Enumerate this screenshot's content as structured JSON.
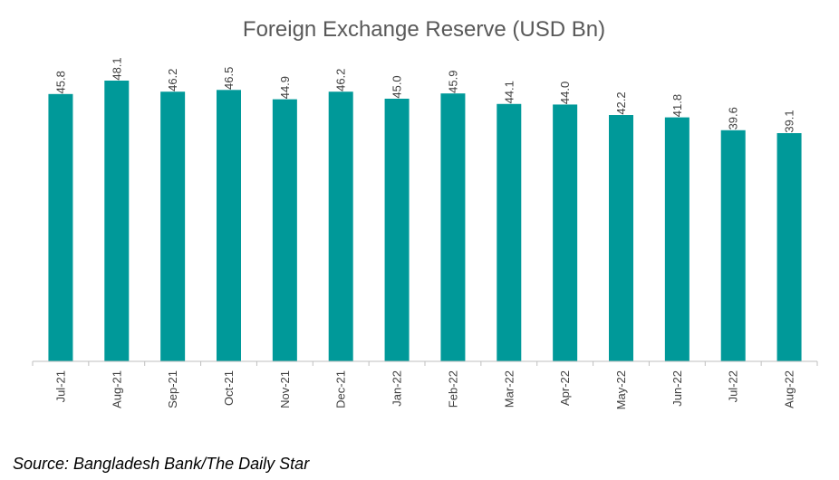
{
  "chart_data": {
    "type": "bar",
    "title": "Foreign Exchange Reserve (USD Bn)",
    "categories": [
      "Jul-21",
      "Aug-21",
      "Sep-21",
      "Oct-21",
      "Nov-21",
      "Dec-21",
      "Jan-22",
      "Feb-22",
      "Mar-22",
      "Apr-22",
      "May-22",
      "Jun-22",
      "Jul-22",
      "Aug-22"
    ],
    "values": [
      45.8,
      48.1,
      46.2,
      46.5,
      44.9,
      46.2,
      45.0,
      45.9,
      44.1,
      44.0,
      42.2,
      41.8,
      39.6,
      39.1
    ],
    "value_labels": [
      "45.8",
      "48.1",
      "46.2",
      "46.5",
      "44.9",
      "46.2",
      "45.0",
      "45.9",
      "44.1",
      "44.0",
      "42.2",
      "41.8",
      "39.6",
      "39.1"
    ],
    "xlabel": "",
    "ylabel": "",
    "ylim": [
      0,
      48.1
    ],
    "grid": false,
    "bar_color": "#009999",
    "axis_color": "#bfbfbf"
  },
  "source": "Source: Bangladesh Bank/The Daily Star"
}
